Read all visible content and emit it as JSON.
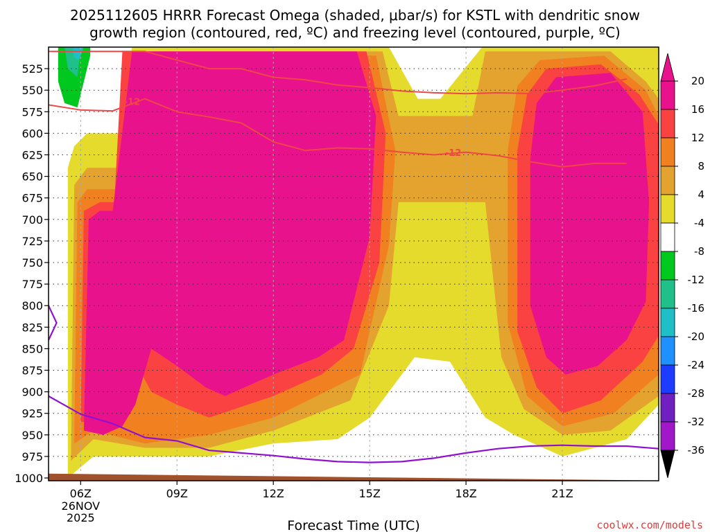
{
  "title": {
    "line1": "2025112605 HRRR Forecast Omega (shaded, μbar/s) for KSTL with dendritic snow",
    "line2": "growth region (contoured, red, ºC) and freezing level (contoured, purple, ºC)"
  },
  "credit": "coolwx.com/models",
  "chart_data": {
    "type": "heatmap",
    "title": "2025112605 HRRR Forecast Omega (shaded, μbar/s) for KSTL with dendritic snow growth region (contoured, red, ºC) and freezing level (contoured, purple, ºC)",
    "xlabel": "Forecast Time (UTC)",
    "ylabel": "",
    "x_axis": {
      "unit": "hour UTC",
      "range": [
        5,
        24
      ],
      "ticks": [
        {
          "value": 6,
          "label": "06Z"
        },
        {
          "value": 9,
          "label": "09Z"
        },
        {
          "value": 12,
          "label": "12Z"
        },
        {
          "value": 15,
          "label": "15Z"
        },
        {
          "value": 18,
          "label": "18Z"
        },
        {
          "value": 21,
          "label": "21Z"
        }
      ],
      "date_label": [
        "26NOV",
        "2025"
      ],
      "grid": true
    },
    "y_axis": {
      "unit": "mb",
      "range": [
        1000,
        500
      ],
      "ticks": [
        525,
        550,
        575,
        600,
        625,
        650,
        675,
        700,
        725,
        750,
        775,
        800,
        825,
        850,
        875,
        900,
        925,
        950,
        975,
        1000
      ],
      "grid": true
    },
    "colorbar": {
      "boundaries": [
        20,
        16,
        12,
        8,
        4,
        -4,
        -8,
        -12,
        -16,
        -20,
        -24,
        -28,
        -32,
        -36
      ],
      "colors": [
        "#e8138c",
        "#fb4242",
        "#f08020",
        "#e3a32e",
        "#e5db2c",
        "#ffffff",
        "#00c81e",
        "#1fc08a",
        "#1fbfc8",
        "#1e90ff",
        "#1e3cff",
        "#7020c0",
        "#a018c8",
        "#a0a0a0"
      ],
      "over_color": "#e8138c",
      "under_color": "#000000"
    },
    "omega_regions": [
      {
        "value": "4 to 8",
        "color": "#e5db2c",
        "points": [
          [
            5.6,
            1000
          ],
          [
            5.6,
            640
          ],
          [
            5.8,
            615
          ],
          [
            6.2,
            600
          ],
          [
            7.2,
            600
          ],
          [
            7.6,
            500
          ],
          [
            15.6,
            500
          ],
          [
            16.5,
            560
          ],
          [
            17.2,
            560
          ],
          [
            18.5,
            500
          ],
          [
            24,
            500
          ],
          [
            24,
            915
          ],
          [
            23,
            955
          ],
          [
            21,
            975
          ],
          [
            19.5,
            950
          ],
          [
            18.6,
            930
          ],
          [
            17.5,
            865
          ],
          [
            16.4,
            860
          ],
          [
            15,
            930
          ],
          [
            14,
            955
          ],
          [
            12,
            960
          ],
          [
            10,
            975
          ],
          [
            8,
            975
          ],
          [
            6.4,
            975
          ]
        ]
      },
      {
        "value": "8 to 12",
        "color": "#e3a32e",
        "points": [
          [
            5.7,
            980
          ],
          [
            5.8,
            660
          ],
          [
            6.2,
            640
          ],
          [
            7.2,
            640
          ],
          [
            7.5,
            505
          ],
          [
            15.4,
            505
          ],
          [
            15.9,
            580
          ],
          [
            18.2,
            580
          ],
          [
            18.6,
            505
          ],
          [
            22.5,
            505
          ],
          [
            23.6,
            540
          ],
          [
            24,
            560
          ],
          [
            24,
            905
          ],
          [
            22.5,
            945
          ],
          [
            21,
            950
          ],
          [
            19.8,
            920
          ],
          [
            19.1,
            860
          ],
          [
            18.6,
            680
          ],
          [
            15.9,
            680
          ],
          [
            15.6,
            800
          ],
          [
            14.4,
            910
          ],
          [
            12,
            945
          ],
          [
            10,
            965
          ],
          [
            8,
            965
          ],
          [
            6.4,
            955
          ]
        ]
      },
      {
        "value": "12 to 16",
        "color": "#f08020",
        "points": [
          [
            5.8,
            960
          ],
          [
            5.9,
            680
          ],
          [
            6.2,
            665
          ],
          [
            7.1,
            665
          ],
          [
            7.3,
            510
          ],
          [
            15.2,
            510
          ],
          [
            15.8,
            620
          ],
          [
            15.6,
            730
          ],
          [
            14.7,
            880
          ],
          [
            12,
            930
          ],
          [
            10,
            950
          ],
          [
            8,
            960
          ],
          [
            6.4,
            945
          ]
        ]
      },
      {
        "value": "12 to 16",
        "color": "#f08020",
        "points": [
          [
            19.3,
            620
          ],
          [
            19.6,
            545
          ],
          [
            20.3,
            515
          ],
          [
            22.3,
            510
          ],
          [
            23.6,
            550
          ],
          [
            24,
            580
          ],
          [
            24,
            880
          ],
          [
            22.6,
            925
          ],
          [
            21,
            940
          ],
          [
            19.9,
            905
          ],
          [
            19.3,
            820
          ]
        ]
      },
      {
        "value": "16 to 20",
        "color": "#fb4242",
        "points": [
          [
            6,
            935
          ],
          [
            6.1,
            690
          ],
          [
            6.6,
            680
          ],
          [
            7.05,
            680
          ],
          [
            7.3,
            505
          ],
          [
            14.9,
            505
          ],
          [
            15.5,
            600
          ],
          [
            15.3,
            750
          ],
          [
            14.5,
            850
          ],
          [
            13.5,
            880
          ],
          [
            12,
            905
          ],
          [
            10,
            930
          ],
          [
            9,
            915
          ],
          [
            8.2,
            900
          ],
          [
            7.7,
            865
          ],
          [
            7.2,
            925
          ],
          [
            6.6,
            935
          ]
        ]
      },
      {
        "value": "16 to 20",
        "color": "#fb4242",
        "points": [
          [
            19.6,
            620
          ],
          [
            19.9,
            555
          ],
          [
            20.5,
            525
          ],
          [
            22.2,
            520
          ],
          [
            23.4,
            555
          ],
          [
            24,
            590
          ],
          [
            24,
            835
          ],
          [
            23.5,
            865
          ],
          [
            22.2,
            910
          ],
          [
            21,
            925
          ],
          [
            20.2,
            895
          ],
          [
            19.6,
            830
          ]
        ]
      },
      {
        "value": "> 20",
        "color": "#e8138c",
        "points": [
          [
            6.1,
            945
          ],
          [
            6.25,
            700
          ],
          [
            6.6,
            690
          ],
          [
            7.0,
            690
          ],
          [
            7.6,
            505
          ],
          [
            14.6,
            505
          ],
          [
            15.2,
            580
          ],
          [
            15,
            720
          ],
          [
            14.2,
            840
          ],
          [
            13.4,
            860
          ],
          [
            12,
            880
          ],
          [
            10.5,
            905
          ],
          [
            9.9,
            895
          ],
          [
            9,
            870
          ],
          [
            8.2,
            850
          ],
          [
            7.7,
            915
          ],
          [
            7.3,
            940
          ],
          [
            6.7,
            950
          ]
        ]
      },
      {
        "value": "> 20",
        "color": "#e8138c",
        "points": [
          [
            20,
            630
          ],
          [
            20.2,
            565
          ],
          [
            20.8,
            535
          ],
          [
            22.5,
            530
          ],
          [
            23.5,
            575
          ],
          [
            23.7,
            680
          ],
          [
            23.6,
            795
          ],
          [
            23,
            840
          ],
          [
            22.1,
            870
          ],
          [
            21.1,
            880
          ],
          [
            20.5,
            860
          ],
          [
            20,
            800
          ]
        ]
      },
      {
        "value": "-4 to -8",
        "color": "#00c81e",
        "points": [
          [
            5.3,
            500
          ],
          [
            6.3,
            500
          ],
          [
            6.3,
            510
          ],
          [
            5.9,
            570
          ],
          [
            5.5,
            565
          ],
          [
            5.3,
            540
          ]
        ]
      },
      {
        "value": "-8 to -12",
        "color": "#1fc08a",
        "points": [
          [
            5.5,
            500
          ],
          [
            6.0,
            500
          ],
          [
            5.9,
            535
          ],
          [
            5.6,
            525
          ]
        ]
      },
      {
        "value": "-12 to -16",
        "color": "#1fc08a",
        "points": [
          [
            5.55,
            500
          ],
          [
            6.0,
            500
          ],
          [
            5.9,
            530
          ],
          [
            5.6,
            518
          ]
        ]
      },
      {
        "value": "-12 to -16",
        "color": "#1fbfc8",
        "points": [
          [
            5.75,
            500
          ],
          [
            6.1,
            500
          ],
          [
            5.95,
            515
          ],
          [
            5.8,
            512
          ]
        ]
      }
    ],
    "series": [
      {
        "name": "-12",
        "color": "#ef4646",
        "kind": "dendritic_upper",
        "points": [
          [
            5,
            505
          ],
          [
            7,
            505
          ],
          [
            8,
            505
          ],
          [
            9,
            515
          ],
          [
            10,
            525
          ],
          [
            11,
            525
          ],
          [
            12,
            535
          ],
          [
            13,
            538
          ],
          [
            14,
            544
          ],
          [
            15,
            547
          ],
          [
            16,
            551
          ],
          [
            17,
            553
          ],
          [
            18,
            554
          ],
          [
            19,
            553
          ],
          [
            20,
            554
          ],
          [
            21,
            550
          ],
          [
            22,
            545
          ],
          [
            23,
            537
          ]
        ]
      },
      {
        "name": "-12",
        "color": "#ef4646",
        "kind": "dendritic_lower",
        "points": [
          [
            5,
            567
          ],
          [
            6,
            573
          ],
          [
            7,
            574
          ],
          [
            8,
            560
          ],
          [
            9,
            575
          ],
          [
            10,
            581
          ],
          [
            11,
            588
          ],
          [
            12,
            610
          ],
          [
            13,
            620
          ],
          [
            14,
            617
          ],
          [
            15,
            618
          ],
          [
            16,
            622
          ],
          [
            17,
            625
          ],
          [
            18,
            622
          ],
          [
            19,
            626
          ],
          [
            20,
            633
          ],
          [
            21,
            639
          ],
          [
            22,
            635
          ],
          [
            23,
            635
          ]
        ]
      },
      {
        "name": "",
        "color": "#9010d0",
        "kind": "freezing_level",
        "points": [
          [
            5,
            905
          ],
          [
            6,
            926
          ],
          [
            7,
            937
          ],
          [
            8,
            953
          ],
          [
            9,
            957
          ],
          [
            10,
            968
          ],
          [
            11,
            971
          ],
          [
            12,
            974
          ],
          [
            13,
            978
          ],
          [
            14,
            981
          ],
          [
            15,
            982
          ],
          [
            16,
            981
          ],
          [
            17,
            977
          ],
          [
            18,
            971
          ],
          [
            19,
            966
          ],
          [
            20,
            963
          ],
          [
            21,
            962
          ],
          [
            22,
            963
          ],
          [
            23,
            963
          ],
          [
            24,
            966
          ]
        ]
      },
      {
        "name": "",
        "color": "#9010d0",
        "kind": "freezing_level_upper",
        "points": [
          [
            5,
            800
          ],
          [
            5.25,
            820
          ],
          [
            5.0,
            840
          ]
        ]
      }
    ],
    "contour_labels": [
      {
        "text": "-12",
        "x": 7.6,
        "y": 563
      },
      {
        "text": "-12",
        "x": 17.6,
        "y": 622
      }
    ],
    "terrain": {
      "color": "#a0522d",
      "top_left": 995,
      "top_right": 1003
    }
  }
}
